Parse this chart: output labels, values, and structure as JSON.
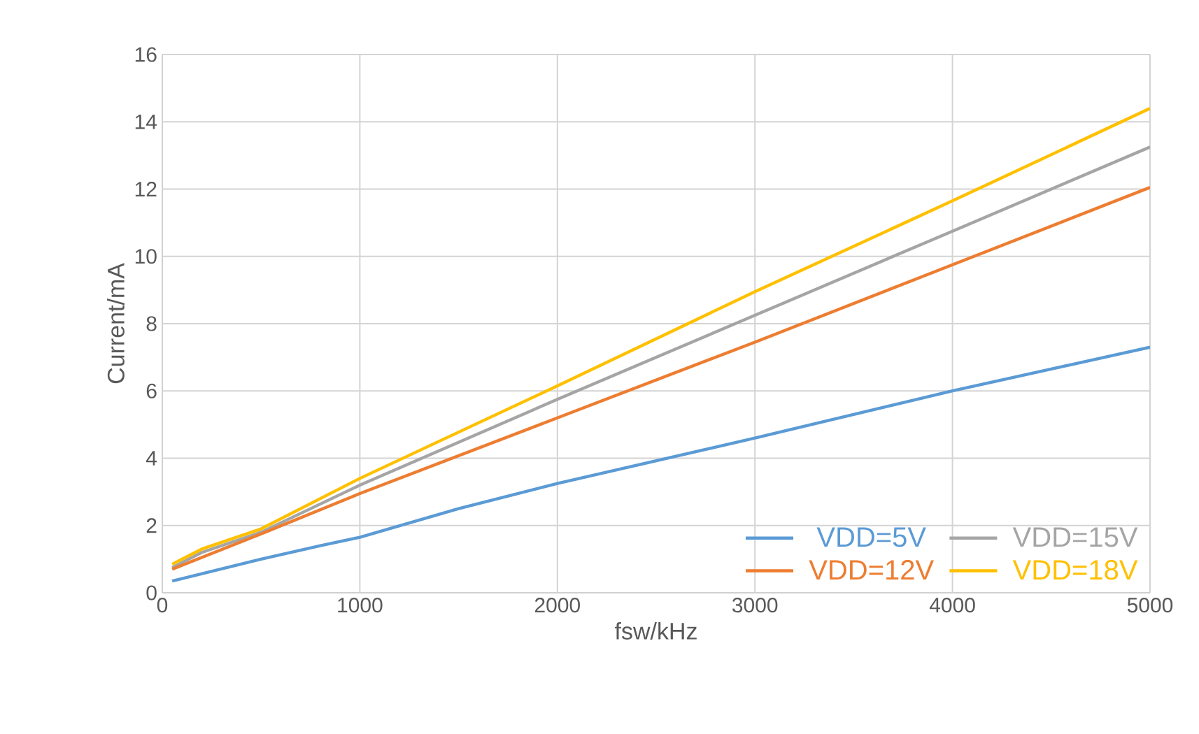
{
  "chart_data": {
    "type": "line",
    "xlabel": "fsw/kHz",
    "ylabel": "Current/mA",
    "xlim": [
      0,
      5000
    ],
    "ylim": [
      0,
      16
    ],
    "xticks": [
      0,
      1000,
      2000,
      3000,
      4000,
      5000
    ],
    "yticks": [
      0,
      2,
      4,
      6,
      8,
      10,
      12,
      14,
      16
    ],
    "grid": true,
    "legend": "bottom right",
    "marker": "none",
    "line_style": "solid",
    "series": [
      {
        "name": "VDD=5V",
        "color": "#5b9bd5",
        "x": [
          50,
          500,
          800,
          1000,
          1500,
          2000,
          3000,
          4000,
          5000
        ],
        "values": [
          0.35,
          1.0,
          1.4,
          1.65,
          2.5,
          3.25,
          4.6,
          6.0,
          7.3
        ]
      },
      {
        "name": "VDD=15V",
        "color": "#a5a5a5",
        "x": [
          50,
          200,
          500,
          1000,
          2000,
          3000,
          4000,
          5000
        ],
        "values": [
          0.75,
          1.2,
          1.8,
          3.2,
          5.75,
          8.25,
          10.75,
          13.25
        ]
      },
      {
        "name": "VDD=12V",
        "color": "#ed7d31",
        "x": [
          50,
          500,
          1000,
          2000,
          3000,
          4000,
          5000
        ],
        "values": [
          0.7,
          1.75,
          2.95,
          5.2,
          7.45,
          9.75,
          12.05
        ]
      },
      {
        "name": "VDD=18V",
        "color": "#ffc000",
        "x": [
          50,
          200,
          500,
          1000,
          2000,
          3000,
          4000,
          5000
        ],
        "values": [
          0.85,
          1.3,
          1.9,
          3.4,
          6.15,
          8.95,
          11.65,
          14.4
        ]
      }
    ]
  }
}
